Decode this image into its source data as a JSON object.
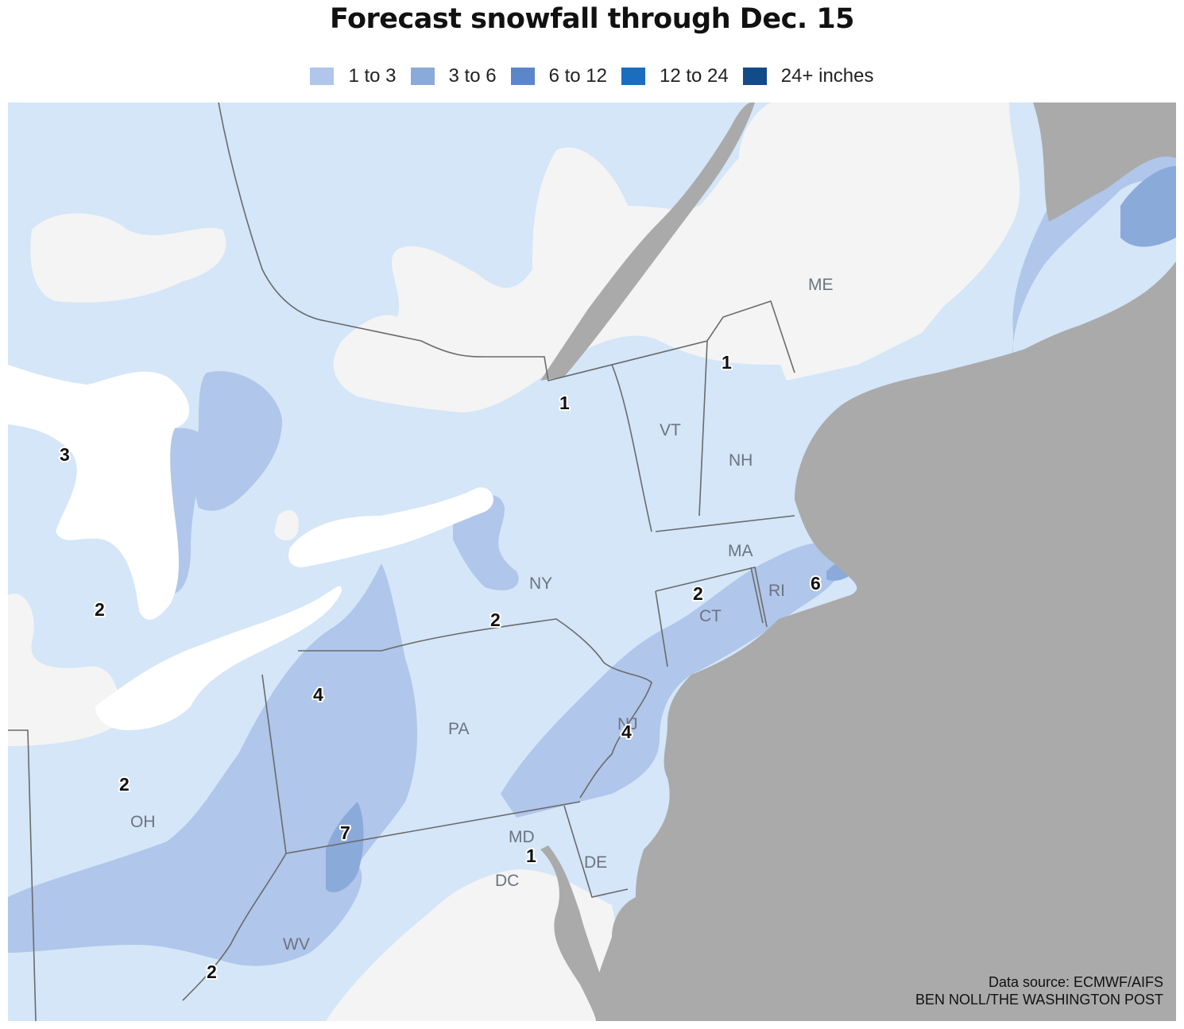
{
  "title": "Forecast snowfall through Dec. 15",
  "legend": [
    {
      "label": "1 to 3",
      "color": "#b0c6ea"
    },
    {
      "label": "3 to 6",
      "color": "#8aaada"
    },
    {
      "label": "6 to 12",
      "color": "#5b86c8"
    },
    {
      "label": "12 to 24",
      "color": "#1a6dbf"
    },
    {
      "label": "24+ inches",
      "color": "#124b86"
    }
  ],
  "colors": {
    "ocean": "#aaaaaa",
    "land_no_snow": "#f4f4f4",
    "trace": "#d4e6f8",
    "lakes": "#ffffff",
    "borders": "#6b6b6b"
  },
  "states": {
    "me": "ME",
    "vt": "VT",
    "nh": "NH",
    "ma": "MA",
    "ri": "RI",
    "ct": "CT",
    "ny": "NY",
    "nj": "NJ",
    "pa": "PA",
    "oh": "OH",
    "wv": "WV",
    "md": "MD",
    "de": "DE",
    "dc": "DC"
  },
  "totals": {
    "nh": "1",
    "ny_north": "1",
    "mi_north": "3",
    "mi_south": "2",
    "ma_ct": "2",
    "ma_cape": "6",
    "ny_south": "2",
    "pa_west": "4",
    "nj": "4",
    "oh": "2",
    "pa_southwest": "7",
    "md": "1",
    "wv": "2"
  },
  "source": {
    "line1": "Data source: ECMWF/AIFS",
    "line2": "BEN NOLL/THE WASHINGTON POST"
  }
}
